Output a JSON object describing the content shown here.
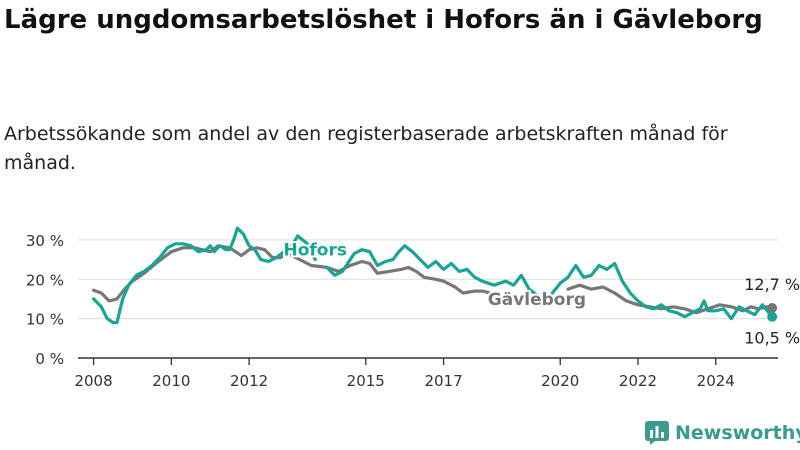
{
  "title": "Lägre ungdomsarbetslöshet i Hofors än i Gävleborg",
  "subtitle": "Arbetssökande som andel av den registerbaserade arbetskraften månad för månad.",
  "brand": "Newsworthy",
  "colors": {
    "hofors": "#16a596",
    "gavleborg": "#777777",
    "grid": "#dddddd",
    "axis": "#333333"
  },
  "icons": {
    "brand": "bar-chart-logo-icon"
  },
  "chart_data": {
    "type": "line",
    "xlim": [
      2007.6,
      2025.6
    ],
    "ylim": [
      0,
      32
    ],
    "y_ticks": [
      {
        "value": 0,
        "label": "0 %"
      },
      {
        "value": 10,
        "label": "10 %"
      },
      {
        "value": 20,
        "label": "20 %"
      },
      {
        "value": 30,
        "label": "30 %"
      }
    ],
    "x_ticks": [
      {
        "value": 2008,
        "label": "2008"
      },
      {
        "value": 2010,
        "label": "2010"
      },
      {
        "value": 2012,
        "label": "2012"
      },
      {
        "value": 2015,
        "label": "2015"
      },
      {
        "value": 2017,
        "label": "2017"
      },
      {
        "value": 2020,
        "label": "2020"
      },
      {
        "value": 2022,
        "label": "2022"
      },
      {
        "value": 2024,
        "label": "2024"
      }
    ],
    "grid": true,
    "series": [
      {
        "name": "Gävleborg",
        "color": "#777777",
        "segments": [
          [
            [
              2008.0,
              17.2
            ],
            [
              2008.2,
              16.5
            ],
            [
              2008.4,
              14.5
            ],
            [
              2008.6,
              15.0
            ],
            [
              2008.8,
              17.5
            ],
            [
              2009.0,
              19.5
            ],
            [
              2009.3,
              21.5
            ],
            [
              2009.6,
              24.0
            ],
            [
              2010.0,
              27.0
            ],
            [
              2010.3,
              28.0
            ],
            [
              2010.6,
              28.0
            ],
            [
              2011.0,
              27.0
            ],
            [
              2011.2,
              28.5
            ],
            [
              2011.5,
              28.0
            ],
            [
              2011.8,
              26.0
            ],
            [
              2012.0,
              27.5
            ],
            [
              2012.2,
              28.0
            ],
            [
              2012.4,
              27.5
            ],
            [
              2012.6,
              25.5
            ],
            [
              2012.8,
              25.5
            ],
            [
              2013.0,
              26.5
            ],
            [
              2013.3,
              25.0
            ],
            [
              2013.6,
              23.5
            ],
            [
              2014.0,
              23.0
            ],
            [
              2014.3,
              22.0
            ],
            [
              2014.6,
              23.5
            ],
            [
              2014.9,
              24.5
            ],
            [
              2015.1,
              24.0
            ],
            [
              2015.3,
              21.5
            ],
            [
              2015.6,
              22.0
            ],
            [
              2015.9,
              22.5
            ],
            [
              2016.1,
              23.0
            ],
            [
              2016.3,
              22.0
            ],
            [
              2016.5,
              20.5
            ],
            [
              2016.8,
              20.0
            ],
            [
              2017.0,
              19.5
            ],
            [
              2017.3,
              18.0
            ],
            [
              2017.5,
              16.5
            ],
            [
              2017.8,
              17.0
            ],
            [
              2018.0,
              17.0
            ],
            [
              2018.2,
              16.5
            ],
            [
              2018.4,
              16.0
            ]
          ],
          [
            [
              2020.2,
              17.5
            ],
            [
              2020.5,
              18.5
            ],
            [
              2020.8,
              17.5
            ],
            [
              2021.1,
              18.0
            ],
            [
              2021.4,
              16.5
            ],
            [
              2021.7,
              14.5
            ],
            [
              2022.0,
              13.5
            ],
            [
              2022.3,
              13.0
            ],
            [
              2022.6,
              12.5
            ],
            [
              2022.9,
              13.0
            ],
            [
              2023.2,
              12.5
            ],
            [
              2023.5,
              11.5
            ],
            [
              2023.8,
              12.5
            ],
            [
              2024.1,
              13.5
            ],
            [
              2024.4,
              13.0
            ],
            [
              2024.7,
              12.0
            ],
            [
              2024.9,
              13.0
            ],
            [
              2025.1,
              12.5
            ],
            [
              2025.3,
              13.0
            ],
            [
              2025.45,
              12.7
            ]
          ]
        ]
      },
      {
        "name": "Hofors",
        "color": "#16a596",
        "segments": [
          [
            [
              2008.0,
              15.0
            ],
            [
              2008.2,
              13.0
            ],
            [
              2008.35,
              10.0
            ],
            [
              2008.5,
              9.0
            ],
            [
              2008.6,
              9.0
            ],
            [
              2008.75,
              15.0
            ],
            [
              2008.9,
              18.5
            ],
            [
              2009.1,
              21.0
            ],
            [
              2009.3,
              22.0
            ],
            [
              2009.5,
              23.5
            ],
            [
              2009.7,
              25.5
            ],
            [
              2009.9,
              28.0
            ],
            [
              2010.1,
              29.0
            ],
            [
              2010.3,
              29.0
            ],
            [
              2010.5,
              28.5
            ],
            [
              2010.7,
              27.0
            ],
            [
              2010.9,
              27.5
            ],
            [
              2011.0,
              28.5
            ],
            [
              2011.1,
              27.0
            ],
            [
              2011.25,
              28.5
            ],
            [
              2011.4,
              27.5
            ],
            [
              2011.5,
              27.5
            ],
            [
              2011.6,
              30.0
            ],
            [
              2011.7,
              33.0
            ],
            [
              2011.85,
              31.5
            ],
            [
              2012.0,
              28.5
            ],
            [
              2012.15,
              27.5
            ],
            [
              2012.3,
              25.0
            ],
            [
              2012.5,
              24.5
            ],
            [
              2012.7,
              25.5
            ],
            [
              2012.9,
              27.0
            ],
            [
              2013.1,
              28.5
            ],
            [
              2013.25,
              31.0
            ],
            [
              2013.5,
              29.0
            ],
            [
              2013.7,
              25.0
            ]
          ],
          [
            [
              2014.0,
              23.0
            ],
            [
              2014.2,
              21.0
            ],
            [
              2014.4,
              22.0
            ],
            [
              2014.7,
              26.5
            ],
            [
              2014.9,
              27.5
            ],
            [
              2015.1,
              27.0
            ],
            [
              2015.3,
              23.5
            ],
            [
              2015.5,
              24.5
            ],
            [
              2015.7,
              25.0
            ],
            [
              2015.85,
              27.0
            ],
            [
              2016.0,
              28.5
            ],
            [
              2016.2,
              27.0
            ],
            [
              2016.4,
              25.0
            ],
            [
              2016.6,
              23.0
            ],
            [
              2016.8,
              24.5
            ],
            [
              2017.0,
              22.5
            ],
            [
              2017.2,
              24.0
            ],
            [
              2017.4,
              22.0
            ],
            [
              2017.6,
              22.5
            ],
            [
              2017.8,
              20.5
            ],
            [
              2018.0,
              19.5
            ],
            [
              2018.3,
              18.5
            ],
            [
              2018.6,
              19.5
            ],
            [
              2018.8,
              18.5
            ],
            [
              2019.0,
              21.0
            ],
            [
              2019.2,
              17.5
            ],
            [
              2019.4,
              16.0
            ]
          ],
          [
            [
              2019.8,
              16.5
            ],
            [
              2020.0,
              19.0
            ],
            [
              2020.2,
              20.5
            ],
            [
              2020.4,
              23.5
            ],
            [
              2020.6,
              20.5
            ],
            [
              2020.8,
              21.0
            ],
            [
              2021.0,
              23.5
            ],
            [
              2021.2,
              22.5
            ],
            [
              2021.4,
              24.0
            ],
            [
              2021.6,
              19.5
            ],
            [
              2021.8,
              16.5
            ],
            [
              2022.0,
              14.5
            ],
            [
              2022.2,
              13.0
            ],
            [
              2022.4,
              12.5
            ],
            [
              2022.6,
              13.5
            ],
            [
              2022.8,
              12.0
            ],
            [
              2023.0,
              11.5
            ],
            [
              2023.2,
              10.5
            ],
            [
              2023.4,
              11.5
            ],
            [
              2023.6,
              12.5
            ],
            [
              2023.7,
              14.5
            ],
            [
              2023.8,
              12.0
            ],
            [
              2024.0,
              12.0
            ],
            [
              2024.2,
              12.5
            ],
            [
              2024.4,
              10.0
            ],
            [
              2024.6,
              13.0
            ],
            [
              2024.8,
              12.0
            ],
            [
              2025.0,
              11.0
            ],
            [
              2025.2,
              13.5
            ],
            [
              2025.45,
              10.5
            ]
          ]
        ]
      }
    ],
    "series_labels": [
      {
        "text": "Hofors",
        "series": "Hofors",
        "x": 2013.7,
        "y": 26.0
      },
      {
        "text": "Gävleborg",
        "series": "Gävleborg",
        "x": 2019.4,
        "y": 13.5
      }
    ],
    "end_labels": [
      {
        "text": "12,7 %",
        "series": "Gävleborg",
        "x": 2025.45,
        "y": 12.7,
        "position": "above"
      },
      {
        "text": "10,5 %",
        "series": "Hofors",
        "x": 2025.45,
        "y": 10.5,
        "position": "below"
      }
    ]
  }
}
